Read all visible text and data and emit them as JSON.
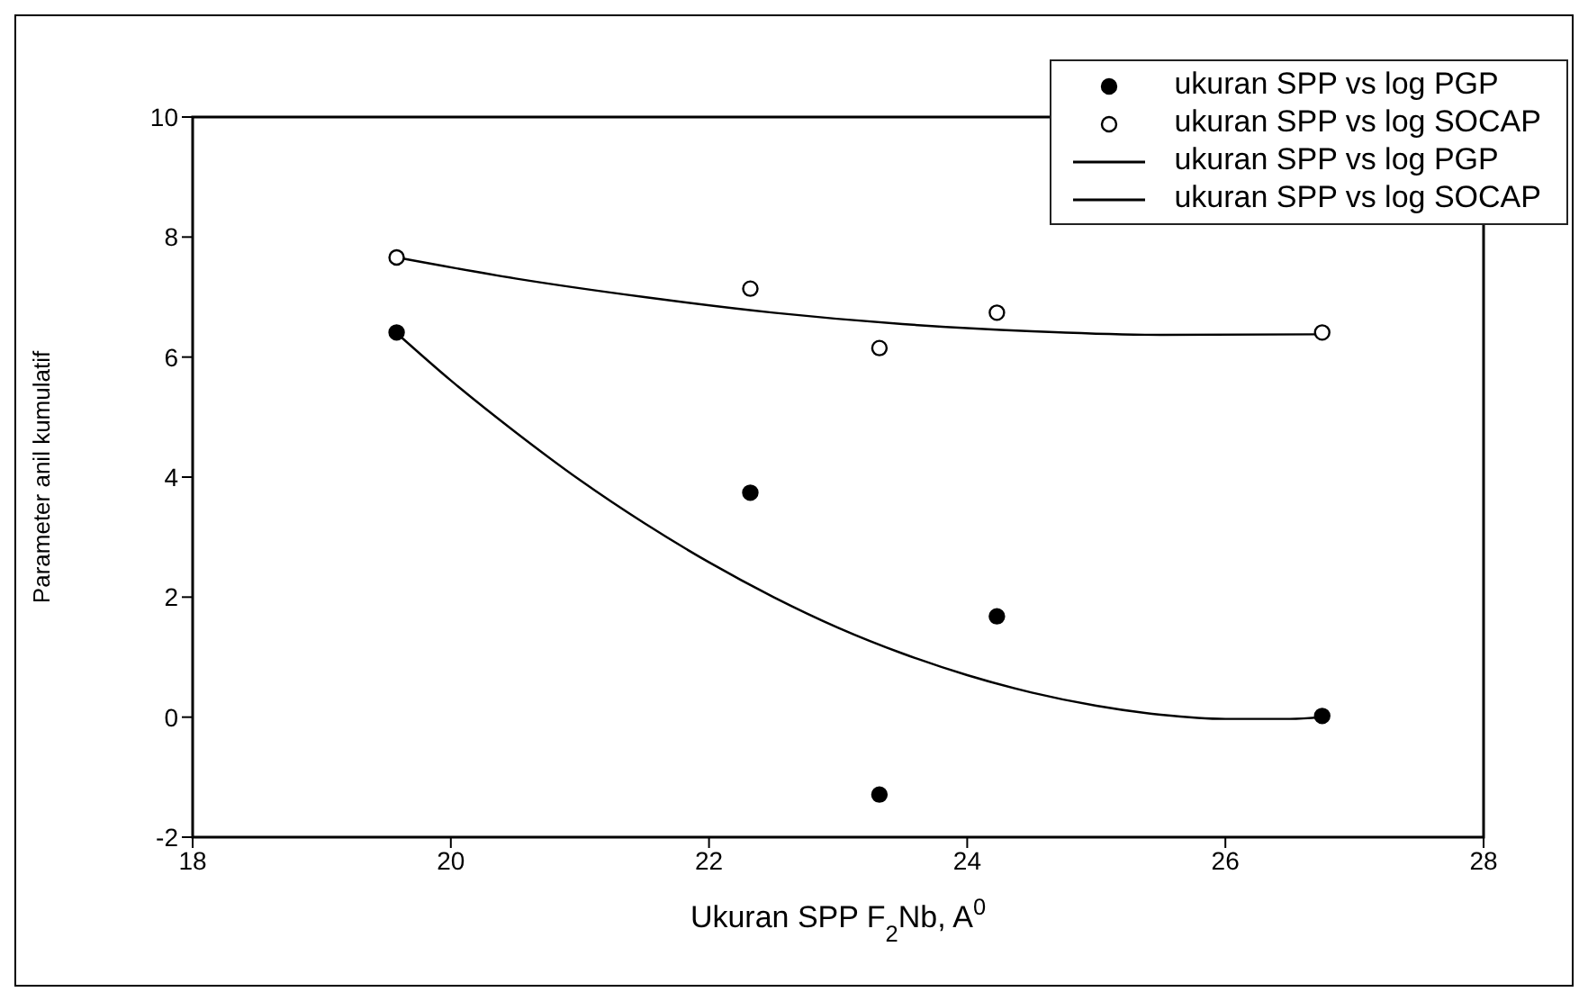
{
  "chart_data": {
    "type": "scatter",
    "xlabel": "Ukuran SPP F$_{2}$Nb, A$^{0}$",
    "ylabel": "Parameter anil kumulatif",
    "xlim": [
      18,
      28
    ],
    "xticks": [
      18,
      20,
      22,
      24,
      26,
      28
    ],
    "ylim": [
      -2,
      10
    ],
    "yticks": [
      -2,
      0,
      2,
      4,
      6,
      8,
      10
    ],
    "grid": false,
    "legend": "top right",
    "marker": "circle",
    "series": [
      {
        "name": "ukuran SPP vs log PGP",
        "color": "#000000",
        "x": [
          19.58,
          22.32,
          23.32,
          24.23,
          26.75
        ],
        "values": [
          6.41,
          3.74,
          -1.29,
          1.68,
          0.02
        ]
      },
      {
        "name": "ukuran SPP vs log SOCAP",
        "color": "#000000",
        "x": [
          19.58,
          22.32,
          23.32,
          24.23,
          26.75
        ],
        "values": [
          7.66,
          7.14,
          6.15,
          6.74,
          6.41
        ]
      },
      {
        "name": "ukuran SPP vs log PGP",
        "type": "line",
        "marker": "none",
        "color": "#000000",
        "x": [
          19.58,
          20,
          20.5,
          21,
          21.5,
          22,
          22.5,
          23,
          23.5,
          24,
          24.5,
          25,
          25.5,
          26,
          26.5,
          26.75
        ],
        "values": [
          6.4,
          5.61,
          4.75,
          3.95,
          3.23,
          2.58,
          2.0,
          1.49,
          1.06,
          0.7,
          0.41,
          0.19,
          0.04,
          -0.03,
          -0.03,
          0.0
        ]
      },
      {
        "name": "ukuran SPP vs log SOCAP",
        "type": "line",
        "marker": "none",
        "color": "#000000",
        "x": [
          19.58,
          20.5,
          21.5,
          22.5,
          23.5,
          24.5,
          25.5,
          26.75
        ],
        "values": [
          7.66,
          7.31,
          7.0,
          6.74,
          6.55,
          6.43,
          6.37,
          6.38
        ]
      }
    ]
  }
}
